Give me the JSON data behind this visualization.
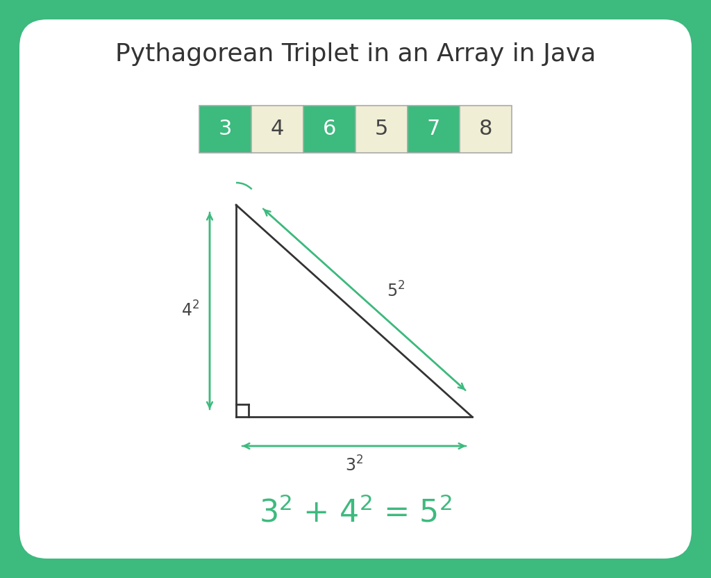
{
  "title": "Pythagorean Triplet in an Array in Java",
  "title_fontsize": 26,
  "title_color": "#333333",
  "outer_bg_color": "#3dba7e",
  "card_bg_color": "#ffffff",
  "border_color": "#3dba7e",
  "array_values": [
    "3",
    "4",
    "6",
    "5",
    "7",
    "8"
  ],
  "array_green_indices": [
    0,
    2,
    4
  ],
  "array_cream_indices": [
    1,
    3,
    5
  ],
  "green_color": "#3dba7e",
  "cream_color": "#f0eed5",
  "array_text_green": "#ffffff",
  "array_text_cream": "#444444",
  "triangle_color": "#333333",
  "arrow_color": "#3dba7e",
  "formula_color": "#3dba7e",
  "formula_fontsize": 32,
  "label_fontsize": 17,
  "dim_label_color": "#444444"
}
